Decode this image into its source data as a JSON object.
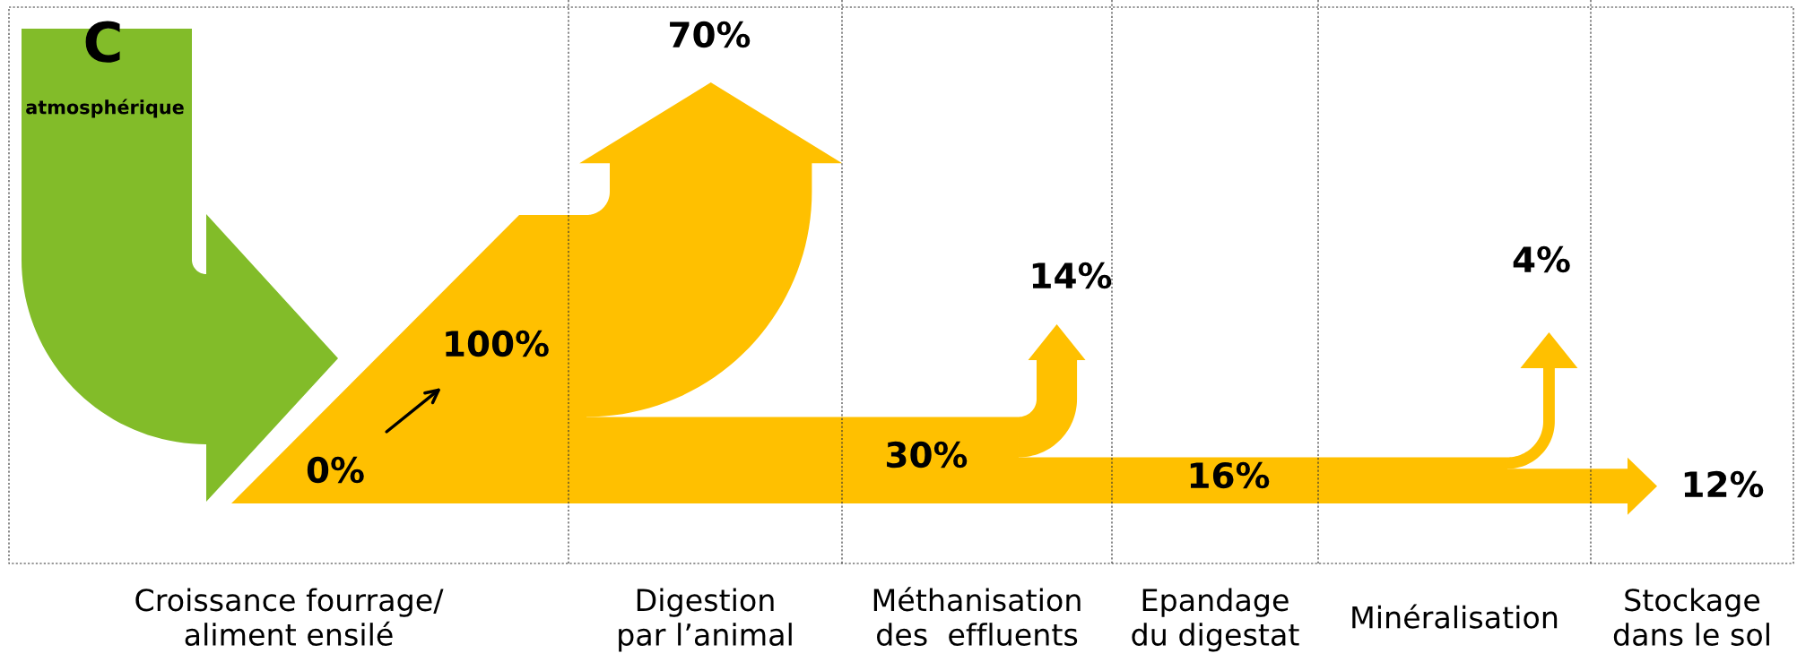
{
  "chart_data": {
    "type": "other",
    "categories": [
      "Croissance fourrage/\naliment ensilé",
      "Digestion\npar l’animal",
      "Méthanisation\ndes  effluents",
      "Epandage\ndu digestat",
      "Minéralisation",
      "Stockage\ndans le sol"
    ],
    "series": [
      {
        "color": "#ffc000",
        "values": [
          100,
          null,
          30,
          16,
          null,
          12
        ],
        "value_labels": [
          "100%",
          null,
          "30%",
          "16%",
          null,
          "12%"
        ]
      },
      {
        "color": "#ffc000",
        "values": [
          null,
          70,
          14,
          null,
          4,
          null
        ],
        "value_labels": [
          null,
          "70%",
          "14%",
          null,
          "4%",
          null
        ]
      }
    ],
    "annotations": [
      "C",
      "atmosphérique",
      "0%"
    ]
  }
}
